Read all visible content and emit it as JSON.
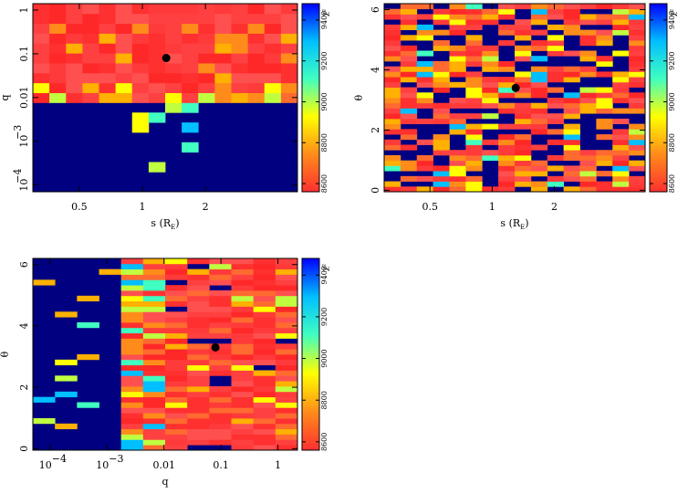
{
  "colors": {
    "background": "#000080",
    "colormap_stops": [
      "#ff3030",
      "#ff8c1a",
      "#ffff00",
      "#40ffc0",
      "#00bfff",
      "#0000ff"
    ],
    "best_fit_marker": "#000000"
  },
  "colorbar": {
    "label": "χ²",
    "range": [
      8560,
      9480
    ],
    "ticks": [
      8600,
      8800,
      9000,
      9200,
      9400
    ],
    "tick_labels": [
      "8600",
      "8800",
      "9000",
      "9200",
      "9400"
    ]
  },
  "chart_data": [
    {
      "type": "heatmap",
      "id": "s-q",
      "xlabel": "s (R",
      "xlabel_sub": "E",
      "xlabel_close": ")",
      "ylabel": "q",
      "xscale": "log",
      "yscale": "log",
      "xlim": [
        0.3,
        5.5
      ],
      "ylim": [
        7e-05,
        1.4
      ],
      "xticks": [
        {
          "v": 0.5,
          "label": "0.5"
        },
        {
          "v": 1,
          "label": "1"
        },
        {
          "v": 2,
          "label": "2"
        }
      ],
      "yticks": [
        {
          "v": 1,
          "label": "1"
        },
        {
          "v": 0.1,
          "label": "0.1"
        },
        {
          "v": 0.01,
          "label": "0.01"
        },
        {
          "v": 0.001,
          "label": "10",
          "exp": "−3"
        },
        {
          "v": 0.0001,
          "label": "10",
          "exp": "−4"
        }
      ],
      "nx": 16,
      "ny": 19,
      "best_fit": {
        "x": 1.3,
        "y": 0.08
      },
      "colorbar": {
        "label": "χ²",
        "tick_labels": [
          "8600",
          "8800",
          "9000",
          "9200",
          "9400"
        ]
      }
    },
    {
      "type": "heatmap",
      "id": "s-theta",
      "xlabel": "s (R",
      "xlabel_sub": "E",
      "xlabel_close": ")",
      "ylabel": "θ",
      "xscale": "log",
      "yscale": "linear",
      "xlim": [
        0.3,
        5.5
      ],
      "ylim": [
        -0.05,
        6.2
      ],
      "xticks": [
        {
          "v": 0.5,
          "label": "0.5"
        },
        {
          "v": 1,
          "label": "1"
        },
        {
          "v": 2,
          "label": "2"
        }
      ],
      "yticks": [
        {
          "v": 0,
          "label": "0"
        },
        {
          "v": 2,
          "label": "2"
        },
        {
          "v": 4,
          "label": "4"
        },
        {
          "v": 6,
          "label": "6"
        }
      ],
      "nx": 16,
      "ny": 36,
      "best_fit": {
        "x": 1.3,
        "y": 3.4
      },
      "colorbar": {
        "label": "χ²",
        "tick_labels": [
          "8600",
          "8800",
          "9000",
          "9200",
          "9400"
        ]
      }
    },
    {
      "type": "heatmap",
      "id": "q-theta",
      "xlabel": "q",
      "xlabel_sub": "",
      "xlabel_close": "",
      "ylabel": "θ",
      "xscale": "log",
      "yscale": "linear",
      "xlim": [
        5e-05,
        2.2
      ],
      "ylim": [
        -0.05,
        6.2
      ],
      "xticks": [
        {
          "v": 0.0001,
          "label": "10",
          "exp": "−4"
        },
        {
          "v": 0.001,
          "label": "10",
          "exp": "−3"
        },
        {
          "v": 0.01,
          "label": "0.01"
        },
        {
          "v": 0.1,
          "label": "0.1"
        },
        {
          "v": 1,
          "label": "1"
        }
      ],
      "yticks": [
        {
          "v": 0,
          "label": "0"
        },
        {
          "v": 2,
          "label": "2"
        },
        {
          "v": 4,
          "label": "4"
        },
        {
          "v": 6,
          "label": "6"
        }
      ],
      "nx": 12,
      "ny": 36,
      "best_fit": {
        "x": 0.08,
        "y": 3.3
      },
      "colorbar": {
        "label": "χ²",
        "tick_labels": [
          "8600",
          "8800",
          "9000",
          "9200",
          "9400"
        ]
      }
    }
  ]
}
